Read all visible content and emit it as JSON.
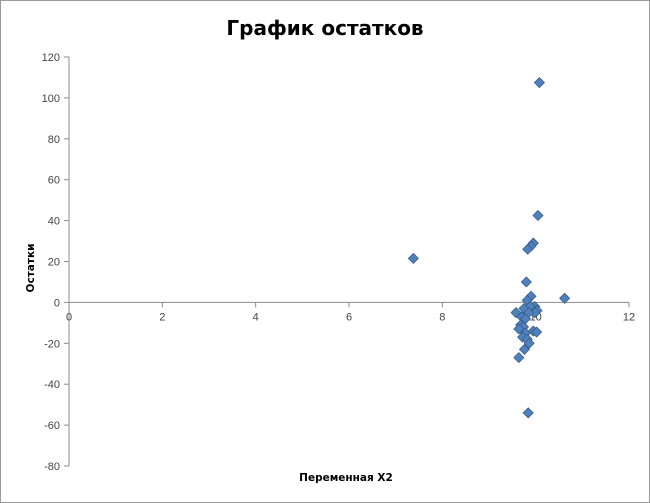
{
  "chart_data": {
    "type": "scatter",
    "title": "График остатков",
    "xlabel": "Переменная X2",
    "ylabel": "Остатки",
    "xlim": [
      0,
      12
    ],
    "ylim": [
      -80,
      120
    ],
    "xticks": [
      0,
      2,
      4,
      6,
      8,
      10,
      12
    ],
    "yticks": [
      -80,
      -60,
      -40,
      -20,
      0,
      20,
      40,
      60,
      80,
      100,
      120
    ],
    "grid": false,
    "legend": "none",
    "marker": "diamond",
    "marker_color": "#4F81BD",
    "marker_edge_color": "#385D8A",
    "points": [
      {
        "x": 7.38,
        "y": 21.5
      },
      {
        "x": 10.08,
        "y": 107.5
      },
      {
        "x": 10.05,
        "y": 42.5
      },
      {
        "x": 9.95,
        "y": 29
      },
      {
        "x": 9.9,
        "y": 27.5
      },
      {
        "x": 9.83,
        "y": 26
      },
      {
        "x": 9.8,
        "y": 10
      },
      {
        "x": 10.62,
        "y": 2
      },
      {
        "x": 9.9,
        "y": 3
      },
      {
        "x": 9.82,
        "y": 1
      },
      {
        "x": 9.98,
        "y": -2
      },
      {
        "x": 9.88,
        "y": -2
      },
      {
        "x": 9.75,
        "y": -3
      },
      {
        "x": 10.03,
        "y": -4
      },
      {
        "x": 9.98,
        "y": -5
      },
      {
        "x": 9.85,
        "y": -5
      },
      {
        "x": 9.58,
        "y": -5
      },
      {
        "x": 9.7,
        "y": -7
      },
      {
        "x": 9.78,
        "y": -8
      },
      {
        "x": 9.68,
        "y": -11
      },
      {
        "x": 9.74,
        "y": -12
      },
      {
        "x": 9.64,
        "y": -13
      },
      {
        "x": 9.95,
        "y": -14
      },
      {
        "x": 10.02,
        "y": -14.5
      },
      {
        "x": 9.78,
        "y": -15
      },
      {
        "x": 9.72,
        "y": -17
      },
      {
        "x": 9.82,
        "y": -18
      },
      {
        "x": 9.86,
        "y": -20
      },
      {
        "x": 9.76,
        "y": -23
      },
      {
        "x": 9.64,
        "y": -27
      },
      {
        "x": 9.84,
        "y": -54
      }
    ]
  }
}
